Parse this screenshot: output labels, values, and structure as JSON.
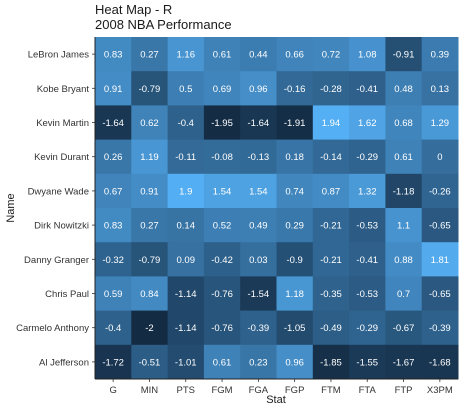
{
  "chart_data": {
    "type": "heatmap",
    "title": "Heat Map - R",
    "subtitle": "2008 NBA Performance",
    "xlabel": "Stat",
    "ylabel": "Name",
    "x_categories": [
      "G",
      "MIN",
      "PTS",
      "FGM",
      "FGA",
      "FGP",
      "FTM",
      "FTA",
      "FTP",
      "X3PM"
    ],
    "y_categories": [
      "LeBron James",
      "Kobe Bryant",
      "Kevin Martin",
      "Kevin Durant",
      "Dwyane Wade",
      "Dirk Nowitzki",
      "Danny Granger",
      "Chris Paul",
      "Carmelo Anthony",
      "Al Jefferson"
    ],
    "values": [
      [
        0.83,
        0.27,
        1.16,
        0.61,
        0.44,
        0.66,
        0.72,
        1.08,
        -0.91,
        0.39
      ],
      [
        0.91,
        -0.79,
        0.5,
        0.69,
        0.96,
        -0.16,
        -0.28,
        -0.41,
        0.48,
        0.13
      ],
      [
        -1.64,
        0.62,
        -0.4,
        -1.95,
        -1.64,
        -1.91,
        1.94,
        1.62,
        0.68,
        1.29
      ],
      [
        0.26,
        1.19,
        -0.11,
        -0.08,
        -0.13,
        0.18,
        -0.14,
        -0.29,
        0.61,
        0
      ],
      [
        0.67,
        0.91,
        1.9,
        1.54,
        1.54,
        0.74,
        0.87,
        1.32,
        -1.18,
        -0.26
      ],
      [
        0.83,
        0.27,
        0.14,
        0.52,
        0.49,
        0.29,
        -0.21,
        -0.53,
        1.1,
        -0.65
      ],
      [
        -0.32,
        -0.79,
        0.09,
        -0.42,
        0.03,
        -0.9,
        -0.21,
        -0.41,
        0.88,
        1.81
      ],
      [
        0.59,
        0.84,
        -1.14,
        -0.76,
        -1.54,
        1.18,
        -0.35,
        -0.53,
        0.7,
        -0.65
      ],
      [
        -0.4,
        -2,
        -1.14,
        -0.76,
        -0.39,
        -1.05,
        -0.49,
        -0.29,
        -0.67,
        -0.39
      ],
      [
        -1.72,
        -0.51,
        -1.01,
        0.61,
        0.23,
        0.96,
        -1.85,
        -1.55,
        -1.67,
        -1.68
      ]
    ],
    "color_low": "#132b43",
    "color_high": "#56b1f7",
    "value_range": [
      -2,
      2
    ],
    "cell_text_color": "#ffffff",
    "grid": false,
    "legend": "none"
  }
}
